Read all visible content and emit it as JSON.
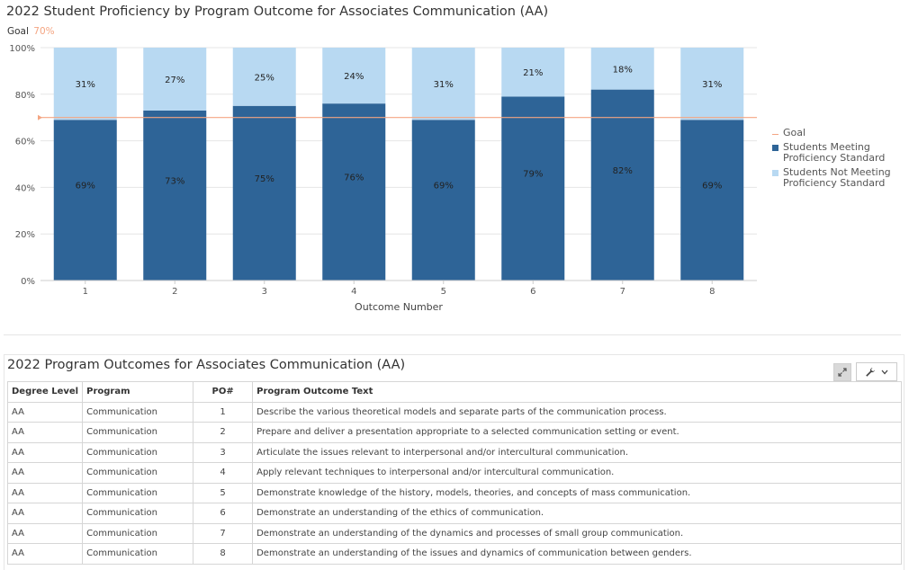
{
  "chart": {
    "title": "2022 Student Proficiency by Program Outcome for Associates Communication (AA)",
    "goal_label": "Goal",
    "goal_value": "70%"
  },
  "chart_data": {
    "type": "bar",
    "stacked": true,
    "title": "2022 Student Proficiency by Program Outcome for Associates Communication (AA)",
    "xlabel": "Outcome Number",
    "ylabel": "",
    "ylim": [
      0,
      100
    ],
    "y_ticks": [
      "0%",
      "20%",
      "40%",
      "60%",
      "80%",
      "100%"
    ],
    "categories": [
      "1",
      "2",
      "3",
      "4",
      "5",
      "6",
      "7",
      "8"
    ],
    "series": [
      {
        "name": "Students Meeting Proficiency Standard",
        "values": [
          69,
          73,
          75,
          76,
          69,
          79,
          82,
          69
        ],
        "labels": [
          "69%",
          "73%",
          "75%",
          "76%",
          "69%",
          "79%",
          "82%",
          "69%"
        ],
        "color": "#2e6497"
      },
      {
        "name": "Students Not Meeting Proficiency Standard",
        "values": [
          31,
          27,
          25,
          24,
          31,
          21,
          18,
          31
        ],
        "labels": [
          "31%",
          "27%",
          "25%",
          "24%",
          "31%",
          "21%",
          "18%",
          "31%"
        ],
        "color": "#b8d9f2"
      }
    ],
    "goal": {
      "name": "Goal",
      "value": 70,
      "color": "#f4a582"
    },
    "grid": true,
    "legend_position": "right"
  },
  "legend": {
    "goal": "Goal",
    "meeting": "Students Meeting Proficiency Standard",
    "not_meeting": "Students Not Meeting Proficiency Standard"
  },
  "table": {
    "title": "2022 Program Outcomes for Associates Communication (AA)",
    "columns": [
      "Degree Level",
      "Program",
      "PO#",
      "Program Outcome Text"
    ],
    "rows": [
      [
        "AA",
        "Communication",
        "1",
        "Describe the various theoretical models and separate parts of the communication process."
      ],
      [
        "AA",
        "Communication",
        "2",
        "Prepare and deliver a presentation appropriate to a selected communication setting or event."
      ],
      [
        "AA",
        "Communication",
        "3",
        "Articulate the issues relevant to interpersonal and/or intercultural communication."
      ],
      [
        "AA",
        "Communication",
        "4",
        "Apply relevant techniques to interpersonal and/or intercultural communication."
      ],
      [
        "AA",
        "Communication",
        "5",
        "Demonstrate knowledge of the history, models, theories, and concepts of mass communication."
      ],
      [
        "AA",
        "Communication",
        "6",
        "Demonstrate an understanding of the ethics of communication."
      ],
      [
        "AA",
        "Communication",
        "7",
        "Demonstrate an understanding of the dynamics and processes of small group communication."
      ],
      [
        "AA",
        "Communication",
        "8",
        "Demonstrate an understanding of the issues and dynamics of communication between genders."
      ]
    ]
  },
  "toolbar": {
    "expand_icon": "expand-icon",
    "wrench_icon": "wrench-icon",
    "chevron_icon": "chevron-down-icon"
  }
}
